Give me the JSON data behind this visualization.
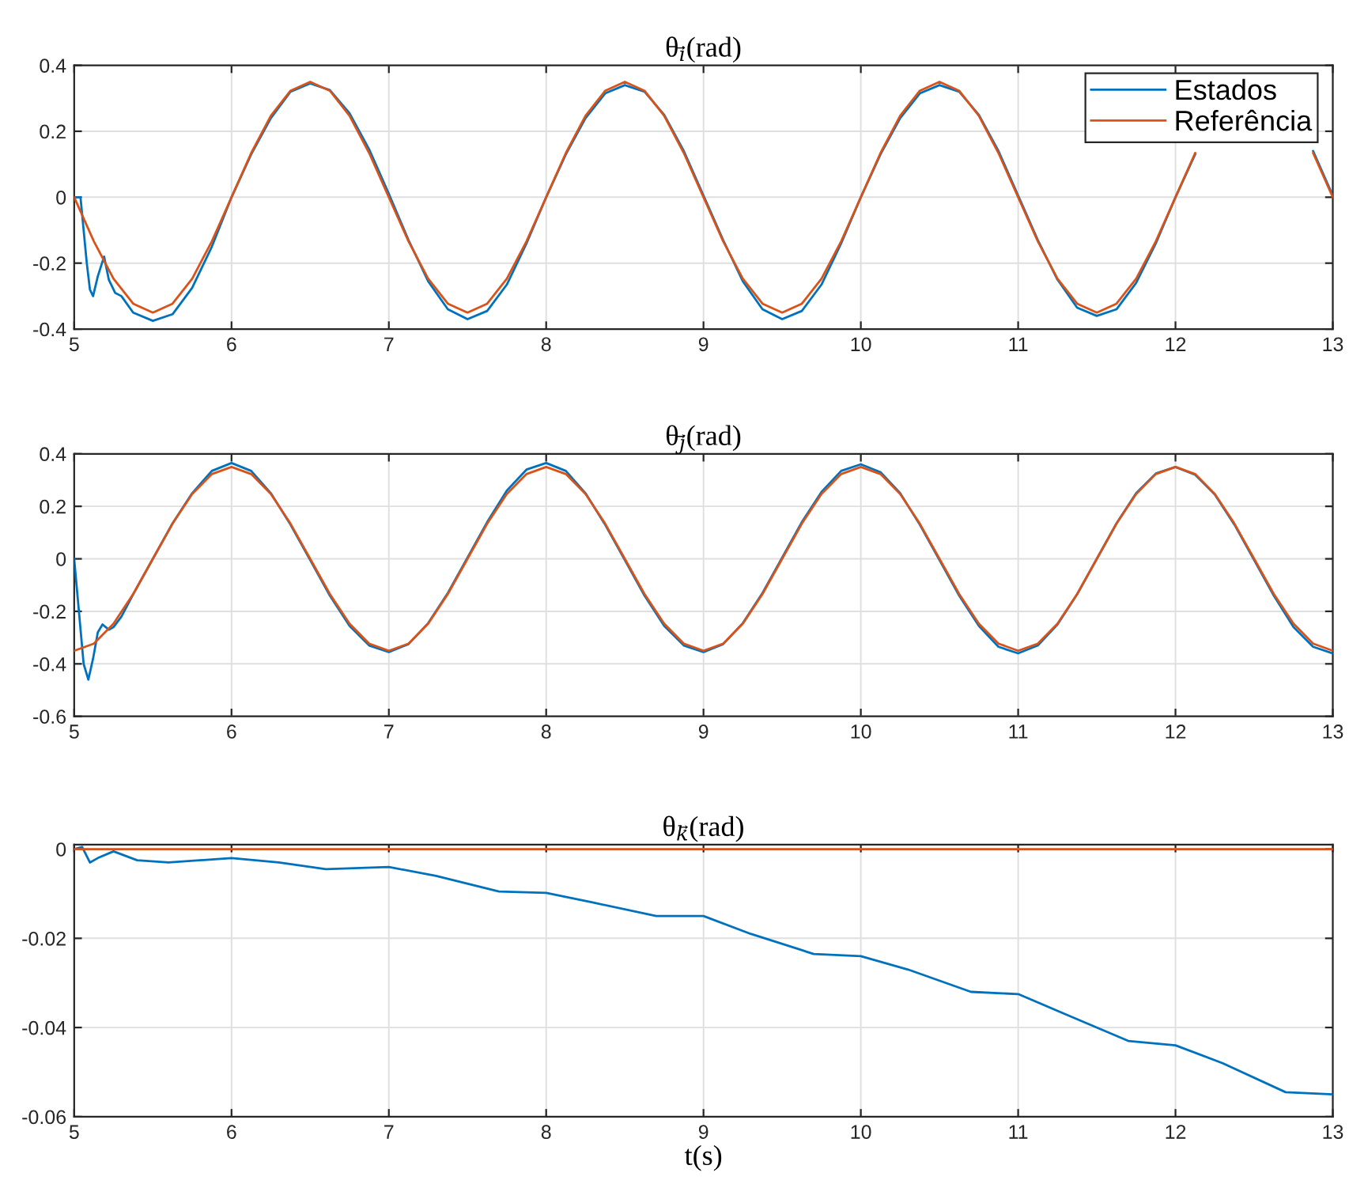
{
  "chart_data": [
    {
      "type": "line",
      "title": "θ$_{i⃗}$(rad)",
      "xlim": [
        5,
        13
      ],
      "xticks": [
        5,
        6,
        7,
        8,
        9,
        10,
        11,
        12,
        13
      ],
      "ylim": [
        -0.4,
        0.4
      ],
      "yticks": [
        -0.4,
        -0.2,
        0,
        0.2,
        0.4
      ],
      "grid": true,
      "legend": "top right",
      "x": [
        5,
        5.125,
        5.25,
        5.375,
        5.5,
        5.625,
        5.75,
        5.875,
        6,
        6.125,
        6.25,
        6.375,
        6.5,
        6.625,
        6.75,
        6.875,
        7,
        7.125,
        7.25,
        7.375,
        7.5,
        7.625,
        7.75,
        7.875,
        8,
        8.125,
        8.25,
        8.375,
        8.5,
        8.625,
        8.75,
        8.875,
        9,
        9.125,
        9.25,
        9.375,
        9.5,
        9.625,
        9.75,
        9.875,
        10,
        10.125,
        10.25,
        10.375,
        10.5,
        10.625,
        10.75,
        10.875,
        11,
        11.125,
        11.25,
        11.375,
        11.5,
        11.625,
        11.75,
        11.875,
        12,
        12.125,
        12.25,
        12.375,
        12.5,
        12.625,
        12.75,
        12.875,
        13
      ],
      "series": [
        {
          "name": "Estados",
          "color": "#0072bd",
          "x": [
            5,
            5.04,
            5.08,
            5.1,
            5.12,
            5.15,
            5.19,
            5.22,
            5.26,
            5.3,
            5.375,
            5.5,
            5.625,
            5.75,
            5.875,
            6,
            6.125,
            6.25,
            6.375,
            6.5,
            6.625,
            6.75,
            6.875,
            7,
            7.125,
            7.25,
            7.375,
            7.5,
            7.625,
            7.75,
            7.875,
            8,
            8.125,
            8.25,
            8.375,
            8.5,
            8.625,
            8.75,
            8.875,
            9,
            9.125,
            9.25,
            9.375,
            9.5,
            9.625,
            9.75,
            9.875,
            10,
            10.125,
            10.25,
            10.375,
            10.5,
            10.625,
            10.75,
            10.875,
            11,
            11.125,
            11.25,
            11.375,
            11.5,
            11.625,
            11.75,
            11.875,
            12,
            12.125,
            12.25,
            12.375,
            12.5,
            12.625,
            12.75,
            12.875,
            13
          ],
          "values": [
            0,
            0,
            -0.2,
            -0.28,
            -0.3,
            -0.24,
            -0.18,
            -0.25,
            -0.29,
            -0.3,
            -0.35,
            -0.375,
            -0.355,
            -0.275,
            -0.15,
            0.0,
            0.13,
            0.24,
            0.32,
            0.345,
            0.325,
            0.255,
            0.145,
            0.01,
            -0.13,
            -0.255,
            -0.34,
            -0.37,
            -0.345,
            -0.265,
            -0.14,
            0.0,
            0.13,
            0.24,
            0.315,
            0.34,
            0.32,
            0.25,
            0.14,
            0.005,
            -0.13,
            -0.255,
            -0.34,
            -0.37,
            -0.345,
            -0.265,
            -0.14,
            0.0,
            0.13,
            0.24,
            0.315,
            0.34,
            0.32,
            0.25,
            0.14,
            0.005,
            -0.13,
            -0.25,
            -0.335,
            -0.36,
            -0.34,
            -0.26,
            -0.14,
            0.0,
            0.13,
            null,
            null,
            null,
            null,
            null,
            0.14,
            0.005
          ]
        },
        {
          "name": "Referência",
          "color": "#d95319",
          "values": [
            0,
            -0.134,
            -0.247,
            -0.323,
            -0.35,
            -0.323,
            -0.247,
            -0.134,
            0,
            0.134,
            0.247,
            0.323,
            0.35,
            0.323,
            0.247,
            0.134,
            0,
            -0.134,
            -0.247,
            -0.323,
            -0.35,
            -0.323,
            -0.247,
            -0.134,
            0,
            0.134,
            0.247,
            0.323,
            0.35,
            0.323,
            0.247,
            0.134,
            0,
            -0.134,
            -0.247,
            -0.323,
            -0.35,
            -0.323,
            -0.247,
            -0.134,
            0,
            0.134,
            0.247,
            0.323,
            0.35,
            0.323,
            0.247,
            0.134,
            0,
            -0.134,
            -0.247,
            -0.323,
            -0.35,
            -0.323,
            -0.247,
            -0.134,
            0,
            0.134,
            null,
            null,
            null,
            null,
            null,
            0.134,
            0
          ]
        }
      ]
    },
    {
      "type": "line",
      "title": "θ$_{j⃗}$(rad)",
      "xlim": [
        5,
        13
      ],
      "xticks": [
        5,
        6,
        7,
        8,
        9,
        10,
        11,
        12,
        13
      ],
      "ylim": [
        -0.6,
        0.4
      ],
      "yticks": [
        -0.6,
        -0.4,
        -0.2,
        0,
        0.2,
        0.4
      ],
      "grid": true,
      "x": [
        5,
        5.125,
        5.25,
        5.375,
        5.5,
        5.625,
        5.75,
        5.875,
        6,
        6.125,
        6.25,
        6.375,
        6.5,
        6.625,
        6.75,
        6.875,
        7,
        7.125,
        7.25,
        7.375,
        7.5,
        7.625,
        7.75,
        7.875,
        8,
        8.125,
        8.25,
        8.375,
        8.5,
        8.625,
        8.75,
        8.875,
        9,
        9.125,
        9.25,
        9.375,
        9.5,
        9.625,
        9.75,
        9.875,
        10,
        10.125,
        10.25,
        10.375,
        10.5,
        10.625,
        10.75,
        10.875,
        11,
        11.125,
        11.25,
        11.375,
        11.5,
        11.625,
        11.75,
        11.875,
        12,
        12.125,
        12.25,
        12.375,
        12.5,
        12.625,
        12.75,
        12.875,
        13
      ],
      "series": [
        {
          "color": "#0072bd",
          "x": [
            5,
            5.03,
            5.06,
            5.09,
            5.12,
            5.15,
            5.18,
            5.22,
            5.25,
            5.3,
            5.375,
            5.5,
            5.625,
            5.75,
            5.875,
            6,
            6.125,
            6.25,
            6.375,
            6.5,
            6.625,
            6.75,
            6.875,
            7,
            7.125,
            7.25,
            7.375,
            7.5,
            7.625,
            7.75,
            7.875,
            8,
            8.125,
            8.25,
            8.375,
            8.5,
            8.625,
            8.75,
            8.875,
            9,
            9.125,
            9.25,
            9.375,
            9.5,
            9.625,
            9.75,
            9.875,
            10,
            10.125,
            10.25,
            10.375,
            10.5,
            10.625,
            10.75,
            10.875,
            11,
            11.125,
            11.25,
            11.375,
            11.5,
            11.625,
            11.75,
            11.875,
            12,
            12.125,
            12.25,
            12.375,
            12.5,
            12.625,
            12.75,
            12.875,
            13
          ],
          "values": [
            0,
            -0.2,
            -0.4,
            -0.46,
            -0.38,
            -0.28,
            -0.25,
            -0.27,
            -0.26,
            -0.22,
            -0.135,
            0.0,
            0.135,
            0.25,
            0.335,
            0.365,
            0.335,
            0.25,
            0.13,
            -0.005,
            -0.14,
            -0.255,
            -0.33,
            -0.355,
            -0.325,
            -0.245,
            -0.13,
            0.005,
            0.14,
            0.26,
            0.34,
            0.365,
            0.335,
            0.25,
            0.13,
            -0.005,
            -0.14,
            -0.255,
            -0.33,
            -0.355,
            -0.325,
            -0.245,
            -0.13,
            0.005,
            0.14,
            0.255,
            0.335,
            0.36,
            0.33,
            0.25,
            0.13,
            -0.005,
            -0.14,
            -0.255,
            -0.335,
            -0.36,
            -0.33,
            -0.25,
            -0.135,
            0.0,
            0.135,
            0.25,
            0.325,
            0.35,
            0.32,
            0.245,
            0.13,
            -0.005,
            -0.14,
            -0.26,
            -0.335,
            -0.36
          ]
        },
        {
          "color": "#d95319",
          "values": [
            -0.35,
            -0.323,
            -0.247,
            -0.134,
            0,
            0.134,
            0.247,
            0.323,
            0.35,
            0.323,
            0.247,
            0.134,
            0,
            -0.134,
            -0.247,
            -0.323,
            -0.35,
            -0.323,
            -0.247,
            -0.134,
            0,
            0.134,
            0.247,
            0.323,
            0.35,
            0.323,
            0.247,
            0.134,
            0,
            -0.134,
            -0.247,
            -0.323,
            -0.35,
            -0.323,
            -0.247,
            -0.134,
            0,
            0.134,
            0.247,
            0.323,
            0.35,
            0.323,
            0.247,
            0.134,
            0,
            -0.134,
            -0.247,
            -0.323,
            -0.35,
            -0.323,
            -0.247,
            -0.134,
            0,
            0.134,
            0.247,
            0.323,
            0.35,
            0.323,
            0.247,
            0.134,
            0,
            -0.134,
            -0.247,
            -0.323,
            -0.35
          ]
        }
      ]
    },
    {
      "type": "line",
      "title": "θ$_{k⃗}$(rad)",
      "xlabel": "t(s)",
      "xlim": [
        5,
        13
      ],
      "xticks": [
        5,
        6,
        7,
        8,
        9,
        10,
        11,
        12,
        13
      ],
      "ylim": [
        -0.06,
        0.001
      ],
      "yticks": [
        -0.06,
        -0.04,
        -0.02,
        0
      ],
      "grid": true,
      "series": [
        {
          "color": "#0072bd",
          "x": [
            5,
            5.05,
            5.1,
            5.15,
            5.25,
            5.4,
            5.6,
            6,
            6.3,
            6.6,
            7,
            7.3,
            7.7,
            8,
            8.3,
            8.7,
            9,
            9.3,
            9.7,
            10,
            10.3,
            10.7,
            11,
            11.3,
            11.7,
            12,
            12.3,
            12.7,
            13
          ],
          "values": [
            0,
            0.0005,
            -0.003,
            -0.002,
            -0.0005,
            -0.0025,
            -0.003,
            -0.002,
            -0.003,
            -0.0045,
            -0.004,
            -0.006,
            -0.0095,
            -0.0098,
            -0.012,
            -0.015,
            -0.015,
            -0.019,
            -0.0235,
            -0.024,
            -0.027,
            -0.032,
            -0.0325,
            -0.037,
            -0.043,
            -0.044,
            -0.048,
            -0.0545,
            -0.055
          ]
        },
        {
          "color": "#d95319",
          "x": [
            5,
            13
          ],
          "values": [
            0,
            0
          ]
        }
      ]
    }
  ]
}
